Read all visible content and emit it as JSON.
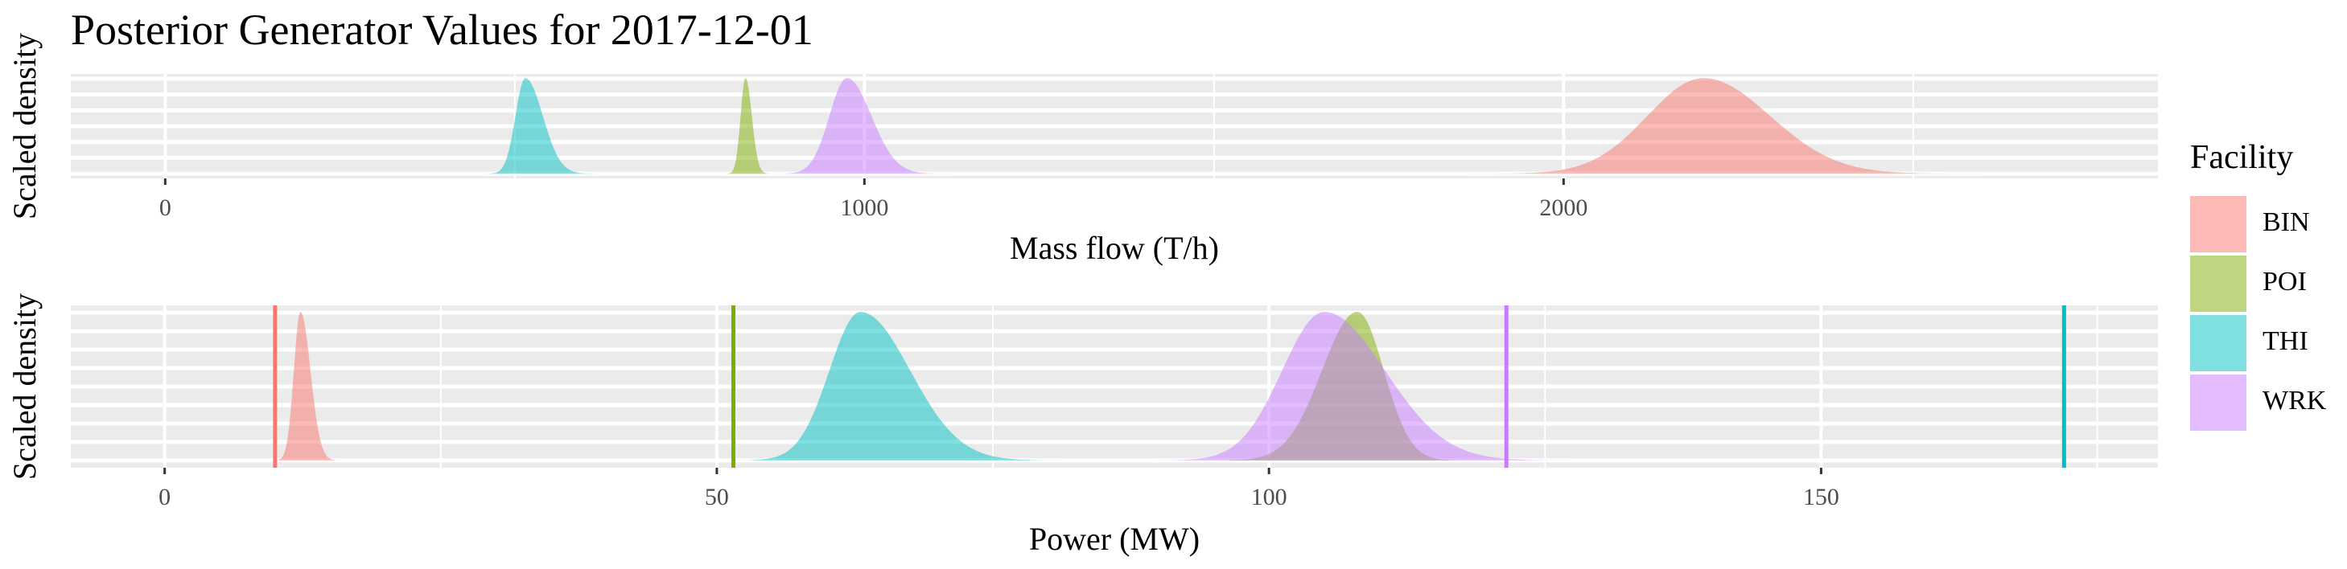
{
  "title": "Posterior Generator Values for 2017-12-01",
  "legend": {
    "title": "Facility",
    "items": [
      {
        "label": "BIN",
        "color": "#F8766D"
      },
      {
        "label": "POI",
        "color": "#7CAE00"
      },
      {
        "label": "THI",
        "color": "#00BFC4"
      },
      {
        "label": "WRK",
        "color": "#C77CFF"
      }
    ]
  },
  "chart_data": [
    {
      "type": "area",
      "xlabel": "Mass flow (T/h)",
      "ylabel": "Scaled density",
      "xlim": [
        -135,
        2850
      ],
      "ylim": [
        0,
        1
      ],
      "x_ticks": [
        0,
        1000,
        2000
      ],
      "tick_labels": [
        "0",
        "1000",
        "2000"
      ],
      "grid": true,
      "series": [
        {
          "name": "BIN",
          "color": "#F8766D",
          "mean": 2200,
          "sd_left": 80,
          "sd_right": 95
        },
        {
          "name": "POI",
          "color": "#7CAE00",
          "mean": 830,
          "sd_left": 7,
          "sd_right": 9
        },
        {
          "name": "THI",
          "color": "#00BFC4",
          "mean": 515,
          "sd_left": 14,
          "sd_right": 25
        },
        {
          "name": "WRK",
          "color": "#C77CFF",
          "mean": 975,
          "sd_left": 25,
          "sd_right": 35
        }
      ]
    },
    {
      "type": "area",
      "xlabel": "Power (MW)",
      "ylabel": "Scaled density",
      "xlim": [
        -8.5,
        180.5
      ],
      "ylim": [
        0,
        1
      ],
      "x_ticks": [
        0,
        50,
        100,
        150
      ],
      "tick_labels": [
        "0",
        "50",
        "100",
        "150"
      ],
      "grid": true,
      "series": [
        {
          "name": "BIN",
          "color": "#F8766D",
          "mean": 12.3,
          "sd_left": 0.6,
          "sd_right": 0.9,
          "reference": 10
        },
        {
          "name": "POI",
          "color": "#7CAE00",
          "mean": 108,
          "sd_left": 3.2,
          "sd_right": 2.4,
          "reference": 51.5
        },
        {
          "name": "THI",
          "color": "#00BFC4",
          "mean": 63,
          "sd_left": 2.8,
          "sd_right": 4.5,
          "reference": 172
        },
        {
          "name": "WRK",
          "color": "#C77CFF",
          "mean": 105,
          "sd_left": 3.8,
          "sd_right": 5.5,
          "reference": 121.5
        }
      ]
    }
  ]
}
